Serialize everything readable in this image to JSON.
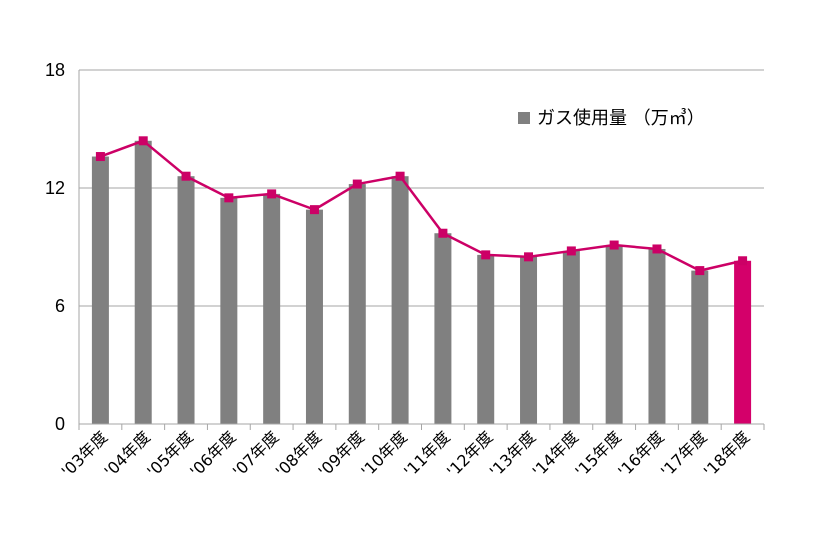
{
  "chart_data": {
    "type": "bar",
    "categories": [
      "'03年度",
      "'04年度",
      "'05年度",
      "'06年度",
      "'07年度",
      "'08年度",
      "'09年度",
      "'10年度",
      "'11年度",
      "'12年度",
      "'13年度",
      "'14年度",
      "'15年度",
      "'16年度",
      "'17年度",
      "'18年度"
    ],
    "series": [
      {
        "name": "ガス使用量 （万㎥）",
        "type": "bar",
        "values": [
          13.6,
          14.4,
          12.6,
          11.5,
          11.7,
          10.9,
          12.2,
          12.6,
          9.7,
          8.6,
          8.5,
          8.8,
          9.1,
          8.9,
          7.8,
          8.3
        ],
        "color": "#808080",
        "highlight_color": "#D4006A",
        "highlight_index": 15
      },
      {
        "type": "line",
        "values": [
          13.6,
          14.4,
          12.6,
          11.5,
          11.7,
          10.9,
          12.2,
          12.6,
          9.7,
          8.6,
          8.5,
          8.8,
          9.1,
          8.9,
          7.8,
          8.3
        ],
        "color": "#CC0066"
      }
    ],
    "ylim": [
      0,
      18
    ],
    "yticks": [
      "0",
      "6",
      "12",
      "18"
    ],
    "grid": true,
    "legend_position": "top-right",
    "xlabel": "",
    "ylabel": ""
  }
}
